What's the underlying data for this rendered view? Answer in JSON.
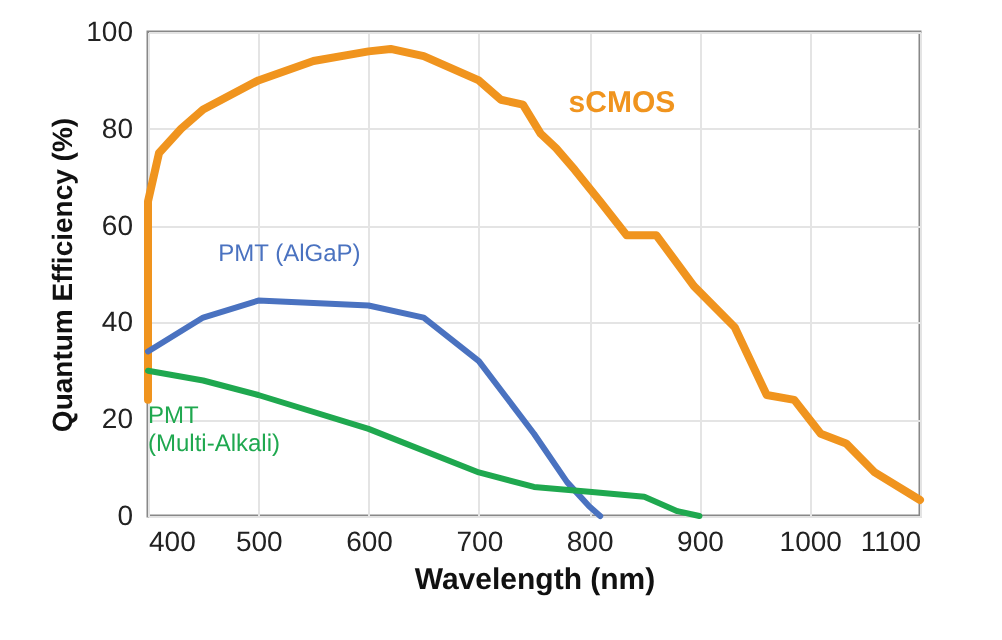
{
  "chart_data": {
    "type": "line",
    "xlabel": "Wavelength (nm)",
    "ylabel": "Quantum Efficiency (%)",
    "xlim": [
      400,
      1100
    ],
    "ylim": [
      0,
      100
    ],
    "xticks": [
      400,
      500,
      600,
      700,
      800,
      900,
      1000,
      1100
    ],
    "yticks": [
      0,
      20,
      40,
      60,
      80,
      100
    ],
    "grid": true,
    "line_style": "solid",
    "marker": "none",
    "series": [
      {
        "name": "sCMOS",
        "color": "#f0941e",
        "x": [
          400,
          400,
          410,
          430,
          450,
          500,
          550,
          600,
          620,
          650,
          700,
          720,
          740,
          756,
          770,
          787,
          810,
          834,
          861,
          895,
          932,
          961,
          986,
          1010,
          1033,
          1059,
          1100
        ],
        "values": [
          24,
          65,
          75,
          80,
          84,
          90,
          94,
          96,
          96.5,
          95,
          90,
          86,
          85,
          79,
          76,
          71.5,
          65,
          58,
          58,
          47.5,
          39,
          25,
          24,
          17,
          15,
          9,
          3.3
        ]
      },
      {
        "name": "PMT (AlGaP)",
        "color": "#4a72c0",
        "x": [
          400,
          450,
          500,
          550,
          600,
          650,
          700,
          750,
          780,
          800,
          810
        ],
        "values": [
          34,
          41,
          44.5,
          44,
          43.5,
          41,
          32,
          17,
          7,
          2,
          0
        ]
      },
      {
        "name": "PMT (Multi-Alkali)",
        "color": "#1fa84f",
        "x": [
          400,
          450,
          500,
          600,
          700,
          750,
          800,
          850,
          880,
          900
        ],
        "values": [
          30,
          28,
          25,
          18,
          9,
          6,
          5,
          4,
          1,
          0
        ]
      }
    ]
  }
}
